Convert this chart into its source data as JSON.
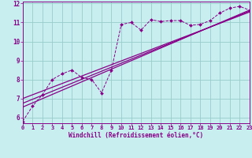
{
  "title": "",
  "xlabel": "Windchill (Refroidissement éolien,°C)",
  "bg_color": "#c8eef0",
  "line_color": "#880088",
  "grid_color": "#99cccc",
  "xdata": [
    0,
    1,
    2,
    3,
    4,
    5,
    6,
    7,
    8,
    9,
    10,
    11,
    12,
    13,
    14,
    15,
    16,
    17,
    18,
    19,
    20,
    21,
    22,
    23
  ],
  "ydata": [
    5.8,
    6.6,
    7.2,
    8.0,
    8.3,
    8.5,
    8.1,
    8.0,
    7.3,
    8.5,
    10.9,
    11.0,
    10.6,
    11.15,
    11.05,
    11.1,
    11.1,
    10.85,
    10.9,
    11.1,
    11.5,
    11.75,
    11.85,
    11.65
  ],
  "trend1_x": [
    0,
    23
  ],
  "trend1_y": [
    6.55,
    11.65
  ],
  "trend2_x": [
    0,
    23
  ],
  "trend2_y": [
    7.0,
    11.55
  ],
  "trend3_x": [
    0,
    23
  ],
  "trend3_y": [
    6.75,
    11.6
  ],
  "xlim": [
    0,
    23
  ],
  "ylim": [
    5.7,
    12.1
  ],
  "xticks": [
    0,
    1,
    2,
    3,
    4,
    5,
    6,
    7,
    8,
    9,
    10,
    11,
    12,
    13,
    14,
    15,
    16,
    17,
    18,
    19,
    20,
    21,
    22,
    23
  ],
  "yticks": [
    6,
    7,
    8,
    9,
    10,
    11,
    12
  ],
  "xlabel_fontsize": 5.5,
  "tick_fontsize": 5.0,
  "ytick_fontsize": 5.5
}
